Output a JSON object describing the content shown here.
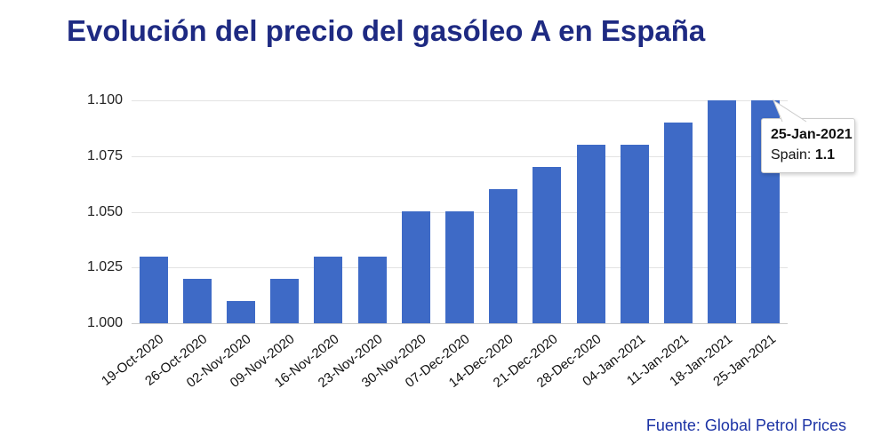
{
  "title": "Evolución del precio del gasóleo A en España",
  "footer": {
    "source": "Fuente: Global Petrol Prices"
  },
  "tooltip": {
    "date": "25-Jan-2021",
    "series_label": "Spain:",
    "value": "1.1"
  },
  "colors": {
    "bar": "#3e6ac6",
    "title": "#1e2a82",
    "footer": "#1c33a5"
  },
  "chart_data": {
    "type": "bar",
    "title": "Evolución del precio del gasóleo A en España",
    "series_name": "Spain",
    "categories": [
      "19-Oct-2020",
      "26-Oct-2020",
      "02-Nov-2020",
      "09-Nov-2020",
      "16-Nov-2020",
      "23-Nov-2020",
      "30-Nov-2020",
      "07-Dec-2020",
      "14-Dec-2020",
      "21-Dec-2020",
      "28-Dec-2020",
      "04-Jan-2021",
      "11-Jan-2021",
      "18-Jan-2021",
      "25-Jan-2021"
    ],
    "values": [
      1.03,
      1.02,
      1.01,
      1.02,
      1.03,
      1.03,
      1.05,
      1.05,
      1.06,
      1.07,
      1.08,
      1.08,
      1.09,
      1.1,
      1.1
    ],
    "xlabel": "",
    "ylabel": "",
    "ylim": [
      1.0,
      1.1
    ],
    "y_ticks": [
      {
        "value": 1.0,
        "label": "1.000"
      },
      {
        "value": 1.025,
        "label": "1.025"
      },
      {
        "value": 1.05,
        "label": "1.050"
      },
      {
        "value": 1.075,
        "label": "1.075"
      },
      {
        "value": 1.1,
        "label": "1.100"
      }
    ],
    "grid": true,
    "legend_position": "none",
    "highlighted_index": 14,
    "source_note": "Fuente: Global Petrol Prices"
  }
}
